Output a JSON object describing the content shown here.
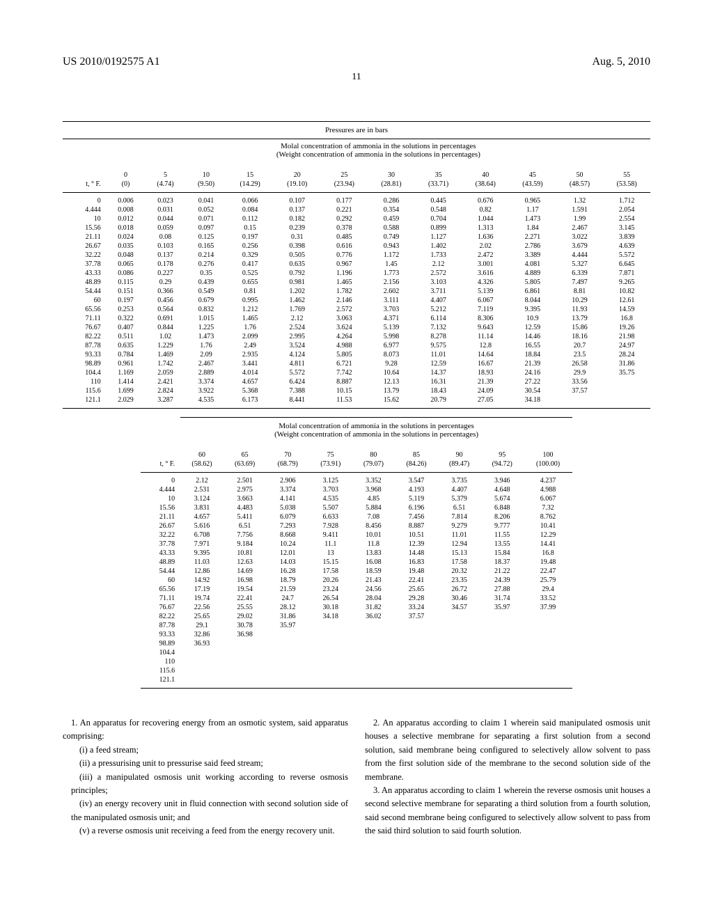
{
  "header": {
    "pub_num": "US 2010/0192575 A1",
    "date": "Aug. 5, 2010",
    "page": "11"
  },
  "table1": {
    "title": "Pressures are in bars",
    "subtitle1": "Molal concentration of ammonia in the solutions in percentages",
    "subtitle2": "(Weight concentration of ammonia in the solutions in percentages)",
    "col_header": "t, ° F.",
    "col_percents": [
      "0",
      "5",
      "10",
      "15",
      "20",
      "25",
      "30",
      "35",
      "40",
      "45",
      "50",
      "55"
    ],
    "col_weights": [
      "(0)",
      "(4.74)",
      "(9.50)",
      "(14.29)",
      "(19.10)",
      "(23.94)",
      "(28.81)",
      "(33.71)",
      "(38.64)",
      "(43.59)",
      "(48.57)",
      "(53.58)"
    ],
    "rows": [
      [
        "0",
        "0.006",
        "0.023",
        "0.041",
        "0.066",
        "0.107",
        "0.177",
        "0.286",
        "0.445",
        "0.676",
        "0.965",
        "1.32",
        "1.712"
      ],
      [
        "4.444",
        "0.008",
        "0.031",
        "0.052",
        "0.084",
        "0.137",
        "0.221",
        "0.354",
        "0.548",
        "0.82",
        "1.17",
        "1.591",
        "2.054"
      ],
      [
        "10",
        "0.012",
        "0.044",
        "0.071",
        "0.112",
        "0.182",
        "0.292",
        "0.459",
        "0.704",
        "1.044",
        "1.473",
        "1.99",
        "2.554"
      ],
      [
        "15.56",
        "0.018",
        "0.059",
        "0.097",
        "0.15",
        "0.239",
        "0.378",
        "0.588",
        "0.899",
        "1.313",
        "1.84",
        "2.467",
        "3.145"
      ],
      [
        "21.11",
        "0.024",
        "0.08",
        "0.125",
        "0.197",
        "0.31",
        "0.485",
        "0.749",
        "1.127",
        "1.636",
        "2.271",
        "3.022",
        "3.839"
      ],
      [
        "26.67",
        "0.035",
        "0.103",
        "0.165",
        "0.256",
        "0.398",
        "0.616",
        "0.943",
        "1.402",
        "2.02",
        "2.786",
        "3.679",
        "4.639"
      ],
      [
        "32.22",
        "0.048",
        "0.137",
        "0.214",
        "0.329",
        "0.505",
        "0.776",
        "1.172",
        "1.733",
        "2.472",
        "3.389",
        "4.444",
        "5.572"
      ],
      [
        "37.78",
        "0.065",
        "0.178",
        "0.276",
        "0.417",
        "0.635",
        "0.967",
        "1.45",
        "2.12",
        "3.001",
        "4.081",
        "5.327",
        "6.645"
      ],
      [
        "43.33",
        "0.086",
        "0.227",
        "0.35",
        "0.525",
        "0.792",
        "1.196",
        "1.773",
        "2.572",
        "3.616",
        "4.889",
        "6.339",
        "7.871"
      ],
      [
        "48.89",
        "0.115",
        "0.29",
        "0.439",
        "0.655",
        "0.981",
        "1.465",
        "2.156",
        "3.103",
        "4.326",
        "5.805",
        "7.497",
        "9.265"
      ],
      [
        "54.44",
        "0.151",
        "0.366",
        "0.549",
        "0.81",
        "1.202",
        "1.782",
        "2.602",
        "3.711",
        "5.139",
        "6.861",
        "8.81",
        "10.82"
      ],
      [
        "60",
        "0.197",
        "0.456",
        "0.679",
        "0.995",
        "1.462",
        "2.146",
        "3.111",
        "4.407",
        "6.067",
        "8.044",
        "10.29",
        "12.61"
      ],
      [
        "65.56",
        "0.253",
        "0.564",
        "0.832",
        "1.212",
        "1.769",
        "2.572",
        "3.703",
        "5.212",
        "7.119",
        "9.395",
        "11.93",
        "14.59"
      ],
      [
        "71.11",
        "0.322",
        "0.691",
        "1.015",
        "1.465",
        "2.12",
        "3.063",
        "4.371",
        "6.114",
        "8.306",
        "10.9",
        "13.79",
        "16.8"
      ],
      [
        "76.67",
        "0.407",
        "0.844",
        "1.225",
        "1.76",
        "2.524",
        "3.624",
        "5.139",
        "7.132",
        "9.643",
        "12.59",
        "15.86",
        "19.26"
      ],
      [
        "82.22",
        "0.511",
        "1.02",
        "1.473",
        "2.099",
        "2.995",
        "4.264",
        "5.998",
        "8.278",
        "11.14",
        "14.46",
        "18.16",
        "21.98"
      ],
      [
        "87.78",
        "0.635",
        "1.229",
        "1.76",
        "2.49",
        "3.524",
        "4.988",
        "6.977",
        "9.575",
        "12.8",
        "16.55",
        "20.7",
        "24.97"
      ],
      [
        "93.33",
        "0.784",
        "1.469",
        "2.09",
        "2.935",
        "4.124",
        "5.805",
        "8.073",
        "11.01",
        "14.64",
        "18.84",
        "23.5",
        "28.24"
      ],
      [
        "98.89",
        "0.961",
        "1.742",
        "2.467",
        "3.441",
        "4.811",
        "6.721",
        "9.28",
        "12.59",
        "16.67",
        "21.39",
        "26.58",
        "31.86"
      ],
      [
        "104.4",
        "1.169",
        "2.059",
        "2.889",
        "4.014",
        "5.572",
        "7.742",
        "10.64",
        "14.37",
        "18.93",
        "24.16",
        "29.9",
        "35.75"
      ],
      [
        "110",
        "1.414",
        "2.421",
        "3.374",
        "4.657",
        "6.424",
        "8.887",
        "12.13",
        "16.31",
        "21.39",
        "27.22",
        "33.56",
        ""
      ],
      [
        "115.6",
        "1.699",
        "2.824",
        "3.922",
        "5.368",
        "7.388",
        "10.15",
        "13.79",
        "18.43",
        "24.09",
        "30.54",
        "37.57",
        ""
      ],
      [
        "121.1",
        "2.029",
        "3.287",
        "4.535",
        "6.173",
        "8.441",
        "11.53",
        "15.62",
        "20.79",
        "27.05",
        "34.18",
        "",
        ""
      ]
    ]
  },
  "table2": {
    "subtitle1": "Molal concentration of ammonia in the solutions in percentages",
    "subtitle2": "(Weight concentration of ammonia in the solutions in percentages)",
    "col_header": "t, ° F.",
    "col_percents": [
      "60",
      "65",
      "70",
      "75",
      "80",
      "85",
      "90",
      "95",
      "100"
    ],
    "col_weights": [
      "(58.62)",
      "(63.69)",
      "(68.79)",
      "(73.91)",
      "(79.07)",
      "(84.26)",
      "(89.47)",
      "(94.72)",
      "(100.00)"
    ],
    "rows": [
      [
        "0",
        "2.12",
        "2.501",
        "2.906",
        "3.125",
        "3.352",
        "3.547",
        "3.735",
        "3.946",
        "4.237"
      ],
      [
        "4.444",
        "2.531",
        "2.975",
        "3.374",
        "3.703",
        "3.968",
        "4.193",
        "4.407",
        "4.648",
        "4.988"
      ],
      [
        "10",
        "3.124",
        "3.663",
        "4.141",
        "4.535",
        "4.85",
        "5.119",
        "5.379",
        "5.674",
        "6.067"
      ],
      [
        "15.56",
        "3.831",
        "4.483",
        "5.038",
        "5.507",
        "5.884",
        "6.196",
        "6.51",
        "6.848",
        "7.32"
      ],
      [
        "21.11",
        "4.657",
        "5.411",
        "6.079",
        "6.633",
        "7.08",
        "7.456",
        "7.814",
        "8.206",
        "8.762"
      ],
      [
        "26.67",
        "5.616",
        "6.51",
        "7.293",
        "7.928",
        "8.456",
        "8.887",
        "9.279",
        "9.777",
        "10.41"
      ],
      [
        "32.22",
        "6.708",
        "7.756",
        "8.668",
        "9.411",
        "10.01",
        "10.51",
        "11.01",
        "11.55",
        "12.29"
      ],
      [
        "37.78",
        "7.971",
        "9.184",
        "10.24",
        "11.1",
        "11.8",
        "12.39",
        "12.94",
        "13.55",
        "14.41"
      ],
      [
        "43.33",
        "9.395",
        "10.81",
        "12.01",
        "13",
        "13.83",
        "14.48",
        "15.13",
        "15.84",
        "16.8"
      ],
      [
        "48.89",
        "11.03",
        "12.63",
        "14.03",
        "15.15",
        "16.08",
        "16.83",
        "17.58",
        "18.37",
        "19.48"
      ],
      [
        "54.44",
        "12.86",
        "14.69",
        "16.28",
        "17.58",
        "18.59",
        "19.48",
        "20.32",
        "21.22",
        "22.47"
      ],
      [
        "60",
        "14.92",
        "16.98",
        "18.79",
        "20.26",
        "21.43",
        "22.41",
        "23.35",
        "24.39",
        "25.79"
      ],
      [
        "65.56",
        "17.19",
        "19.54",
        "21.59",
        "23.24",
        "24.56",
        "25.65",
        "26.72",
        "27.88",
        "29.4"
      ],
      [
        "71.11",
        "19.74",
        "22.41",
        "24.7",
        "26.54",
        "28.04",
        "29.28",
        "30.46",
        "31.74",
        "33.52"
      ],
      [
        "76.67",
        "22.56",
        "25.55",
        "28.12",
        "30.18",
        "31.82",
        "33.24",
        "34.57",
        "35.97",
        "37.99"
      ],
      [
        "82.22",
        "25.65",
        "29.02",
        "31.86",
        "34.18",
        "36.02",
        "37.57",
        "",
        "",
        ""
      ],
      [
        "87.78",
        "29.1",
        "30.78",
        "35.97",
        "",
        "",
        "",
        "",
        "",
        ""
      ],
      [
        "93.33",
        "32.86",
        "36.98",
        "",
        "",
        "",
        "",
        "",
        "",
        ""
      ],
      [
        "98.89",
        "36.93",
        "",
        "",
        "",
        "",
        "",
        "",
        "",
        ""
      ],
      [
        "104.4",
        "",
        "",
        "",
        "",
        "",
        "",
        "",
        "",
        ""
      ],
      [
        "110",
        "",
        "",
        "",
        "",
        "",
        "",
        "",
        "",
        ""
      ],
      [
        "115.6",
        "",
        "",
        "",
        "",
        "",
        "",
        "",
        "",
        ""
      ],
      [
        "121.1",
        "",
        "",
        "",
        "",
        "",
        "",
        "",
        "",
        ""
      ]
    ]
  },
  "claims": {
    "c1_lead": "1. An apparatus for recovering energy from an osmotic system, said apparatus comprising:",
    "c1_i": "(i) a feed stream;",
    "c1_ii": "(ii) a pressurising unit to pressurise said feed stream;",
    "c1_iii": "(iii) a manipulated osmosis unit working according to reverse osmosis principles;",
    "c1_iv": "(iv) an energy recovery unit in fluid connection with second solution side of the manipulated osmosis unit; and",
    "c1_v": "(v) a reverse osmosis unit receiving a feed from the energy recovery unit.",
    "c2": "2. An apparatus according to claim 1 wherein said manipulated osmosis unit houses a selective membrane for separating a first solution from a second solution, said membrane being configured to selectively allow solvent to pass from the first solution side of the membrane to the second solution side of the membrane.",
    "c3": "3. An apparatus according to claim 1 wherein the reverse osmosis unit houses a second selective membrane for separating a third solution from a fourth solution, said second membrane being configured to selectively allow solvent to pass from the said third solution to said fourth solution."
  }
}
